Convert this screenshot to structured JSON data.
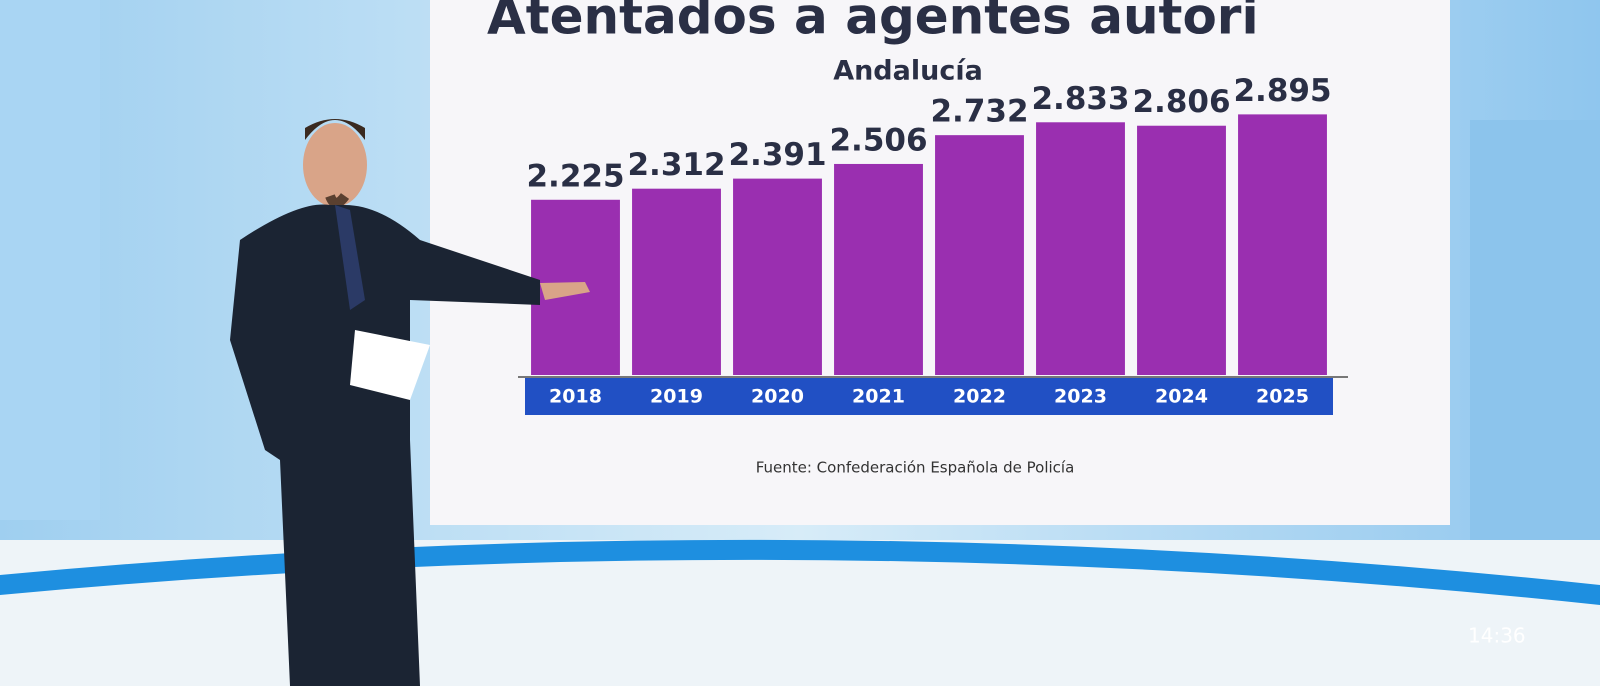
{
  "chart_data": {
    "type": "bar",
    "title": "Atentados a agentes autori",
    "subtitle": "Andalucía",
    "source": "Fuente: Confederación Española de Policía",
    "categories": [
      "2018",
      "2019",
      "2020",
      "2021",
      "2022",
      "2023",
      "2024",
      "2025"
    ],
    "values": [
      2225,
      2312,
      2391,
      2506,
      2732,
      2833,
      2806,
      2895
    ],
    "value_labels": [
      "2.225",
      "2.312",
      "2.391",
      "2.506",
      "2.732",
      "2.833",
      "2.806",
      "2.895"
    ],
    "color": "#9a2fb0",
    "ylim": [
      850,
      3000
    ]
  },
  "clock": "14:36"
}
